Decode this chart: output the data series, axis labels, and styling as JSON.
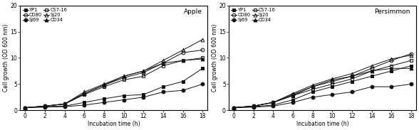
{
  "x": [
    0,
    2,
    4,
    6,
    8,
    10,
    12,
    14,
    16,
    18
  ],
  "apple": {
    "YP1": [
      0.5,
      0.7,
      0.8,
      1.5,
      2.2,
      2.8,
      3.0,
      4.5,
      5.5,
      8.0
    ],
    "SJ69": [
      0.5,
      0.6,
      0.7,
      1.0,
      1.5,
      2.0,
      2.5,
      3.5,
      3.8,
      5.0
    ],
    "SJ20": [
      0.5,
      0.8,
      1.2,
      3.5,
      5.0,
      6.5,
      7.5,
      9.5,
      11.5,
      13.5
    ],
    "CD80": [
      0.5,
      0.8,
      1.2,
      3.2,
      4.8,
      6.2,
      7.2,
      9.0,
      11.0,
      11.5
    ],
    "CS7-16": [
      0.5,
      0.8,
      1.2,
      3.0,
      4.5,
      5.8,
      6.5,
      8.5,
      9.5,
      10.0
    ],
    "CD34": [
      0.5,
      0.8,
      1.2,
      3.2,
      4.8,
      6.5,
      7.5,
      9.0,
      9.5,
      9.8
    ]
  },
  "persimmon": {
    "YP1": [
      0.5,
      0.7,
      1.0,
      2.0,
      3.5,
      4.5,
      5.5,
      6.5,
      7.5,
      8.5
    ],
    "SJ69": [
      0.5,
      0.6,
      0.8,
      1.5,
      2.5,
      3.0,
      3.5,
      4.5,
      4.5,
      5.0
    ],
    "SJ20": [
      0.5,
      0.8,
      1.5,
      3.2,
      4.8,
      6.0,
      7.0,
      8.5,
      9.8,
      10.5
    ],
    "CD80": [
      0.5,
      0.8,
      1.5,
      3.0,
      4.5,
      5.5,
      6.5,
      8.0,
      9.5,
      10.8
    ],
    "CS7-16": [
      0.5,
      0.8,
      1.5,
      2.8,
      4.0,
      5.0,
      6.0,
      7.5,
      8.5,
      9.5
    ],
    "CD34": [
      0.5,
      0.8,
      1.5,
      2.8,
      4.5,
      5.8,
      6.5,
      7.5,
      8.0,
      8.0
    ]
  },
  "series_styles": {
    "YP1": {
      "marker": "s",
      "filled": true,
      "color": "#111111"
    },
    "SJ69": {
      "marker": "o",
      "filled": true,
      "color": "#111111"
    },
    "SJ20": {
      "marker": "^",
      "filled": false,
      "color": "#111111"
    },
    "CD80": {
      "marker": "o",
      "filled": false,
      "color": "#111111"
    },
    "CS7-16": {
      "marker": "s",
      "filled": false,
      "color": "#111111"
    },
    "CD34": {
      "marker": "^",
      "filled": true,
      "color": "#111111"
    }
  },
  "draw_order": [
    "SJ20",
    "CD80",
    "CS7-16",
    "CD34",
    "YP1",
    "SJ69"
  ],
  "legend_col1": [
    "YP1",
    "SJ69",
    "SJ20"
  ],
  "legend_col2": [
    "CD80",
    "CS7-16",
    "CD34"
  ],
  "ylabel": "Cell growth (OD 600 nm)",
  "xlabel": "Incubation time (h)",
  "ylim": [
    0,
    20
  ],
  "yticks": [
    0,
    5,
    10,
    15,
    20
  ],
  "xticks": [
    0,
    2,
    4,
    6,
    8,
    10,
    12,
    14,
    16,
    18
  ],
  "title_apple": "Apple",
  "title_persimmon": "Persimmon",
  "background_color": "#ffffff"
}
